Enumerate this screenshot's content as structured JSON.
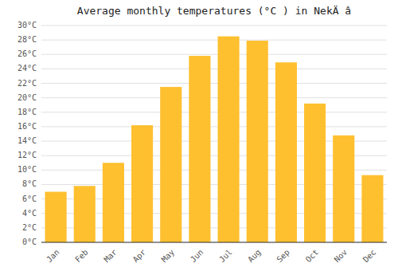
{
  "chart_data": {
    "type": "bar",
    "title": "Average monthly temperatures (°C ) in NekÄ â",
    "categories": [
      "Jan",
      "Feb",
      "Mar",
      "Apr",
      "May",
      "Jun",
      "Jul",
      "Aug",
      "Sep",
      "Oct",
      "Nov",
      "Dec"
    ],
    "values": [
      7,
      7.8,
      11,
      16.2,
      21.5,
      25.8,
      28.5,
      27.9,
      24.9,
      19.2,
      14.8,
      9.3
    ],
    "color": "#FFC030",
    "ylim": [
      0,
      30
    ],
    "yticks": [
      {
        "value": 0,
        "label": "0°C"
      },
      {
        "value": 2,
        "label": "2°C"
      },
      {
        "value": 4,
        "label": "4°C"
      },
      {
        "value": 6,
        "label": "6°C"
      },
      {
        "value": 8,
        "label": "8°C"
      },
      {
        "value": 10,
        "label": "10°C"
      },
      {
        "value": 12,
        "label": "12°C"
      },
      {
        "value": 14,
        "label": "14°C"
      },
      {
        "value": 16,
        "label": "16°C"
      },
      {
        "value": 18,
        "label": "18°C"
      },
      {
        "value": 20,
        "label": "20°C"
      },
      {
        "value": 22,
        "label": "22°C"
      },
      {
        "value": 24,
        "label": "24°C"
      },
      {
        "value": 26,
        "label": "26°C"
      },
      {
        "value": 28,
        "label": "28°C"
      },
      {
        "value": 30,
        "label": "30°C"
      }
    ],
    "grid": true
  }
}
